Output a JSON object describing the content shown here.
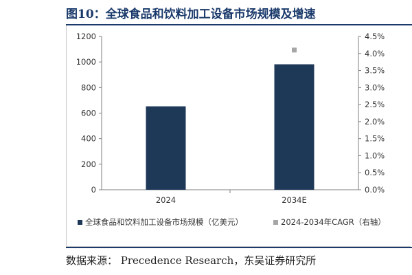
{
  "header": {
    "title": "图10：全球食品和饮料加工设备市场规模及增速"
  },
  "footer": {
    "source": "数据来源： Precedence Research，东吴证券研究所"
  },
  "colors": {
    "bar": "#1e3858",
    "cagr_marker": "#a6a6a6",
    "title": "#1a3a6b"
  },
  "chart_data": {
    "type": "bar",
    "categories": [
      "2024",
      "2034E"
    ],
    "series": [
      {
        "name": "全球食品和饮料加工设备市场规模（亿美元）",
        "type": "bar",
        "axis": "left",
        "values": [
          653,
          982
        ]
      },
      {
        "name": "2024-2034年CAGR（右轴）",
        "type": "scatter",
        "axis": "right",
        "values": [
          null,
          0.041
        ]
      }
    ],
    "ylim": [
      0,
      1200
    ],
    "yticks": [
      "0",
      "200",
      "400",
      "600",
      "800",
      "1000",
      "1200"
    ],
    "y2lim": [
      0,
      0.045
    ],
    "y2ticks": [
      "0.0%",
      "0.5%",
      "1.0%",
      "1.5%",
      "2.0%",
      "2.5%",
      "3.0%",
      "3.5%",
      "4.0%",
      "4.5%"
    ],
    "legend_position": "bottom"
  }
}
